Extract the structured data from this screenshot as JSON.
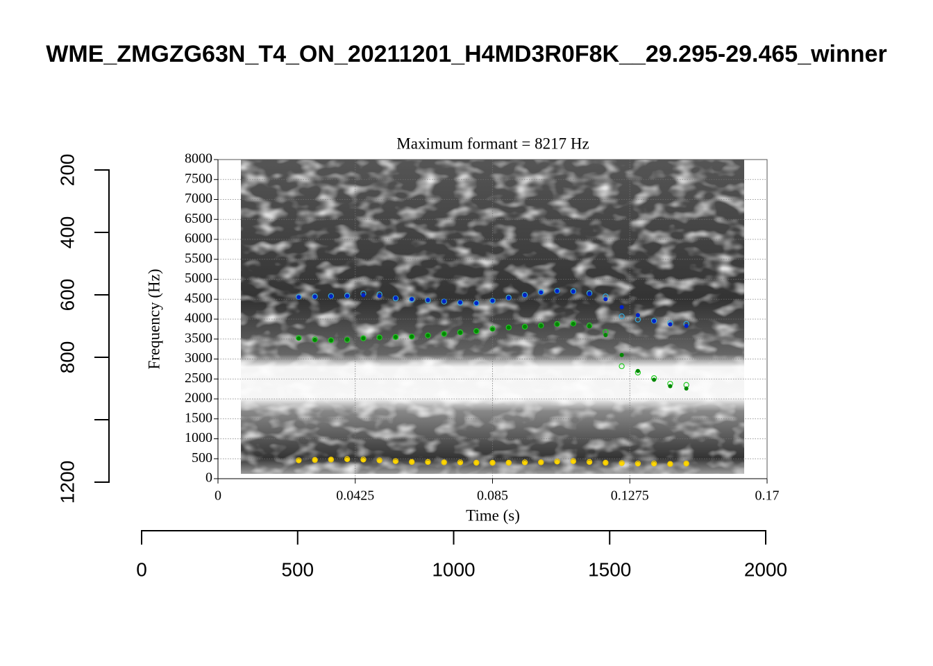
{
  "chart_data": [
    {
      "type": "axes",
      "title": "WME_ZMGZG63N_T4_ON_20211201_H4MD3R0F8K__29.295-29.465_winner",
      "xlim": [
        0,
        2000
      ],
      "xticks": [
        0,
        500,
        1000,
        1500,
        2000
      ],
      "ylim": [
        200,
        1200
      ],
      "y_reversed": true,
      "yticks": [
        200,
        400,
        600,
        800,
        {
          "value": 1000,
          "label": null
        },
        1200
      ]
    },
    {
      "type": "scatter",
      "subtitle": "Maximum formant  =  8217 Hz",
      "xlabel": "Time (s)",
      "ylabel": "Frequency (Hz)",
      "xlim": [
        0,
        0.17
      ],
      "xticks": [
        0,
        0.0425,
        0.085,
        0.1275,
        0.17
      ],
      "ylim": [
        0,
        8000
      ],
      "yticks": [
        0,
        500,
        1000,
        1500,
        2000,
        2500,
        3000,
        3500,
        4000,
        4500,
        5000,
        5500,
        6000,
        6500,
        7000,
        7500,
        8000
      ],
      "grid": true,
      "x": [
        0.025,
        0.03,
        0.035,
        0.04,
        0.045,
        0.05,
        0.055,
        0.06,
        0.065,
        0.07,
        0.075,
        0.08,
        0.085,
        0.09,
        0.095,
        0.1,
        0.105,
        0.11,
        0.115,
        0.12,
        0.125,
        0.13,
        0.135,
        0.14,
        0.145
      ],
      "series": [
        {
          "color": "#f0c800",
          "marker": "open",
          "values": [
            460,
            470,
            480,
            490,
            480,
            460,
            440,
            420,
            420,
            410,
            410,
            400,
            400,
            400,
            410,
            410,
            430,
            440,
            420,
            400,
            390,
            380,
            380,
            370,
            380
          ]
        },
        {
          "color": "#ffd700",
          "marker": "filled",
          "values": [
            450,
            470,
            480,
            480,
            470,
            450,
            430,
            420,
            410,
            410,
            400,
            400,
            400,
            400,
            400,
            410,
            420,
            430,
            410,
            400,
            380,
            370,
            370,
            370,
            380
          ]
        },
        {
          "color": "#22cc22",
          "marker": "open",
          "values": [
            3530,
            3490,
            3470,
            3480,
            3520,
            3540,
            3550,
            3560,
            3590,
            3630,
            3670,
            3700,
            3760,
            3790,
            3810,
            3840,
            3880,
            3890,
            3840,
            3680,
            2820,
            2660,
            2520,
            2380,
            2350
          ]
        },
        {
          "color": "#008800",
          "marker": "filled",
          "values": [
            3520,
            3480,
            3470,
            3490,
            3520,
            3540,
            3550,
            3560,
            3590,
            3630,
            3660,
            3700,
            3750,
            3790,
            3810,
            3830,
            3870,
            3880,
            3820,
            3600,
            3100,
            2700,
            2480,
            2320,
            2260
          ]
        },
        {
          "color": "#33aadd",
          "marker": "open",
          "values": [
            4560,
            4570,
            4580,
            4590,
            4640,
            4620,
            4520,
            4490,
            4470,
            4440,
            4410,
            4400,
            4460,
            4540,
            4610,
            4680,
            4710,
            4700,
            4650,
            4570,
            4070,
            3990,
            3960,
            3900,
            3880
          ]
        },
        {
          "color": "#0022cc",
          "marker": "filled",
          "values": [
            4550,
            4560,
            4570,
            4580,
            4600,
            4580,
            4530,
            4500,
            4480,
            4450,
            4420,
            4400,
            4460,
            4530,
            4600,
            4670,
            4700,
            4690,
            4630,
            4500,
            4300,
            4100,
            3950,
            3870,
            3830
          ]
        }
      ]
    }
  ]
}
